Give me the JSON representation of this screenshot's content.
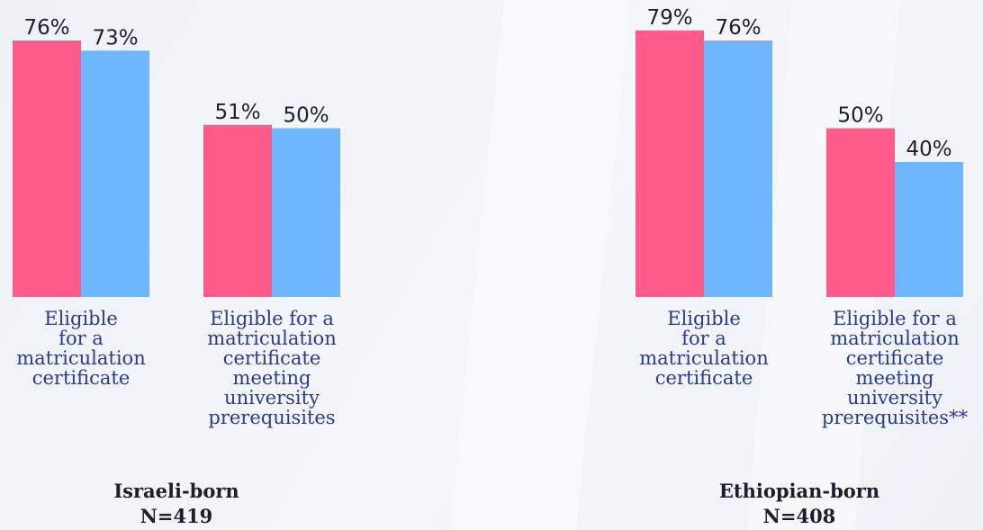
{
  "chart_data": [
    {
      "type": "bar",
      "title": "Israeli-born",
      "subtitle": "N=419",
      "categories": [
        "Eligible\nfor a\nmatriculation\ncertificate",
        "Eligible for a\nmatriculation\ncertificate\nmeeting\nuniversity\nprerequisites"
      ],
      "series": [
        {
          "color": "#ff5b8a",
          "values": [
            76,
            51
          ],
          "value_labels": [
            "76%",
            "51%"
          ]
        },
        {
          "color": "#6eb6ff",
          "values": [
            73,
            50
          ],
          "value_labels": [
            "73%",
            "50%"
          ]
        }
      ],
      "ylim": [
        0,
        88
      ]
    },
    {
      "type": "bar",
      "title": "Ethiopian-born",
      "subtitle": "N=408",
      "categories": [
        "Eligible\nfor a\nmatriculation\ncertificate",
        "Eligible for a\nmatriculation\ncertificate\nmeeting\nuniversity\nprerequisites**"
      ],
      "series": [
        {
          "color": "#ff5b8a",
          "values": [
            79,
            50
          ],
          "value_labels": [
            "79%",
            "50%"
          ]
        },
        {
          "color": "#6eb6ff",
          "values": [
            76,
            40
          ],
          "value_labels": [
            "76%",
            "40%"
          ]
        }
      ],
      "ylim": [
        0,
        88
      ]
    }
  ]
}
